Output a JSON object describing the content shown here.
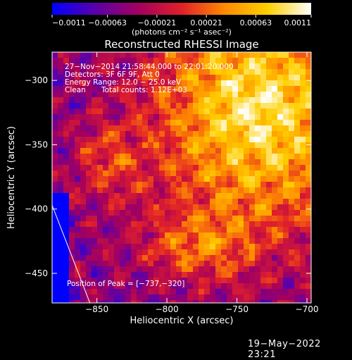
{
  "chart_data": {
    "type": "heatmap",
    "title": "Reconstructed RHESSI Image",
    "xlabel": "Heliocentric X (arcsec)",
    "ylabel": "Heliocentric Y (arcsec)",
    "x_range": [
      -882,
      -697
    ],
    "y_range": [
      -473,
      -278
    ],
    "x_ticks": [
      -850,
      -800,
      -750,
      -700
    ],
    "x_tick_labels": [
      "−850",
      "−800",
      "−750",
      "−700"
    ],
    "y_ticks": [
      -300,
      -350,
      -400,
      -450
    ],
    "y_tick_labels": [
      "−300",
      "−350",
      "−400",
      "−450"
    ],
    "colorbar": {
      "range": [
        -0.0011,
        0.0011
      ],
      "tick_values": [
        -0.0011,
        -0.00063,
        -0.00021,
        0.00021,
        0.00063,
        0.0011
      ],
      "tick_labels": [
        "−0.0011",
        "−0.00063",
        "−0.00021",
        "0.00021",
        "0.00063",
        "0.0011"
      ],
      "unit_label": "(photons cm⁻² s⁻¹ asec⁻²)",
      "stops": [
        "#0000ff",
        "#5a00aa",
        "#a3005f",
        "#e0202a",
        "#ff8a00",
        "#ffd000",
        "#ffffff"
      ]
    },
    "annotations": {
      "line1": "27−Nov−2014 21:58:44.000 to 22:01:20.000",
      "line2": "Detectors: 3F 6F 9F, Att 0",
      "line3": "Energy Range: 12.0 − 25.0 keV",
      "line4_a": "Clean",
      "line4_b": "Total counts: 1.12E+03",
      "peak": "Position of Peak = [−737,−320]"
    },
    "peak_position": [
      -737,
      -320
    ],
    "limb_line": [
      [
        -882,
        -397
      ],
      [
        -855,
        -473
      ]
    ],
    "grid": false
  },
  "footer": {
    "timestamp": "19−May−2022 23:21"
  }
}
